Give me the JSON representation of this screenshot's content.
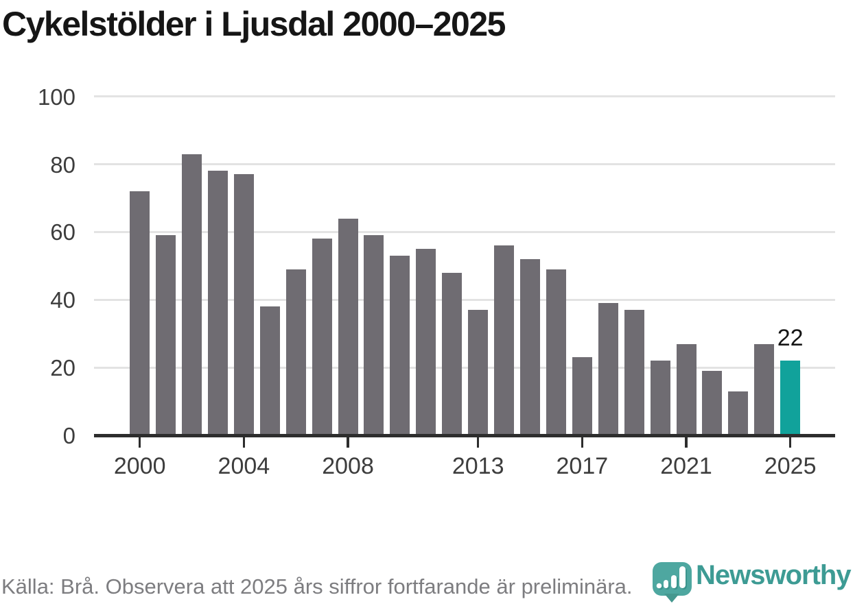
{
  "title": "Cykelstölder i Ljusdal 2000–2025",
  "chart_data": {
    "type": "bar",
    "title": "Cykelstölder i Ljusdal 2000–2025",
    "categories": [
      2000,
      2001,
      2002,
      2003,
      2004,
      2005,
      2006,
      2007,
      2008,
      2009,
      2010,
      2011,
      2012,
      2013,
      2014,
      2015,
      2016,
      2017,
      2018,
      2019,
      2020,
      2021,
      2022,
      2023,
      2024,
      2025
    ],
    "values": [
      72,
      59,
      83,
      78,
      77,
      38,
      49,
      58,
      64,
      59,
      53,
      55,
      48,
      37,
      56,
      52,
      49,
      23,
      39,
      37,
      22,
      27,
      19,
      13,
      27,
      22
    ],
    "xlabel": "",
    "ylabel": "",
    "ylim": [
      0,
      100
    ],
    "y_ticks": [
      0,
      20,
      40,
      60,
      80,
      100
    ],
    "x_tick_labels": [
      2000,
      2004,
      2008,
      2013,
      2017,
      2021,
      2025
    ],
    "grid": true,
    "legend": "none",
    "bar_color": "#6f6c72",
    "highlight_color": "#11a29b",
    "highlight_category": 2025,
    "annotation": {
      "text": "22",
      "category": 2025,
      "value": 22
    }
  },
  "footer": {
    "source": "Källa: Brå. Observera att 2025 års siffror fortfarande är preliminära.",
    "brand": "Newsworthy",
    "brand_color": "#3d9b94",
    "logo_icon": "newsworthy-pin-chart-icon"
  }
}
